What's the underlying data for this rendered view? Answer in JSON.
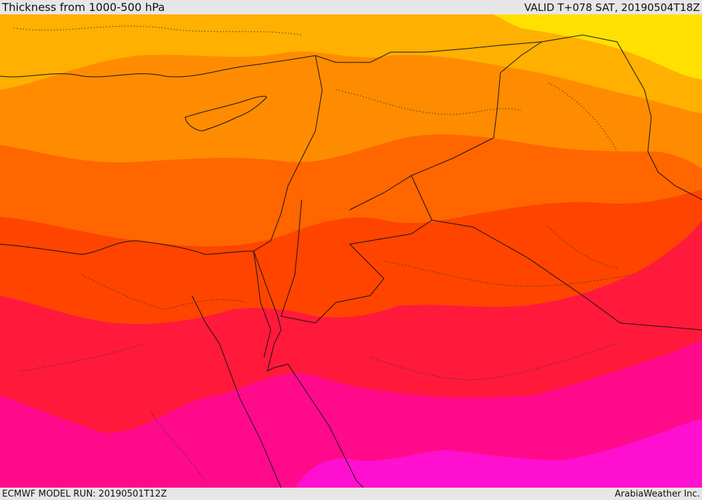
{
  "header": {
    "title": "Thickness from 1000-500 hPa",
    "valid": "VALID T+078 SAT, 20190504T18Z"
  },
  "footer": {
    "model_run": "ECMWF MODEL RUN: 20190501T12Z",
    "credit": "ArabiaWeather Inc."
  },
  "palette": {
    "yellow": "#ffe000",
    "gold": "#ffb000",
    "orange": "#ff8c00",
    "dark_orange": "#ff6600",
    "red_orange": "#ff4400",
    "red": "#ff1a3c",
    "crimson": "#ff0a50",
    "magenta": "#ff0a8a",
    "pink": "#ff10d0",
    "border_color": "#111111"
  }
}
